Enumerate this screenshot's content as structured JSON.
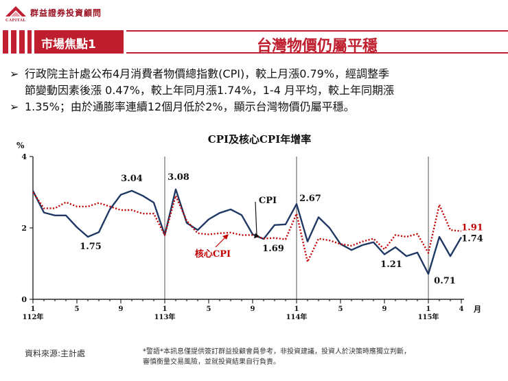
{
  "brand": {
    "name": "群益證券投資顧問",
    "caption": "CAPITAL"
  },
  "header": {
    "tag": "市場焦點1",
    "title": "台灣物價仍屬平穩"
  },
  "bullets": [
    "行政院主計處公布4月消費者物價總指數(CPI)，較上月漲0.79%，經調整季",
    "節變動因素後漲 0.47%，較上年同月漲1.74%，1-4 月平均，較上年同期漲",
    "1.35%；由於通膨率連續12個月低於2%，顯示台灣物價仍屬平穩。"
  ],
  "colors": {
    "accent": "#be1e2d",
    "cpi": "#1f3864",
    "core": "#c00000"
  },
  "chart_data": {
    "type": "line",
    "title": "CPI及核心CPI年增率",
    "ylabel": "%",
    "xlabel": "月",
    "ylim": [
      0,
      4
    ],
    "yticks": [
      0,
      2,
      4
    ],
    "xtick_labels": [
      "1",
      "5",
      "9",
      "1",
      "5",
      "9",
      "1",
      "5",
      "9",
      "1",
      "4"
    ],
    "xtick_index": [
      0,
      4,
      8,
      12,
      16,
      20,
      24,
      28,
      32,
      36,
      39
    ],
    "year_labels": [
      {
        "index": 0,
        "label": "112年"
      },
      {
        "index": 12,
        "label": "113年"
      },
      {
        "index": 24,
        "label": "114年"
      },
      {
        "index": 36,
        "label": "115年"
      }
    ],
    "x": [
      "112-01",
      "112-02",
      "112-03",
      "112-04",
      "112-05",
      "112-06",
      "112-07",
      "112-08",
      "112-09",
      "112-10",
      "112-11",
      "112-12",
      "113-01",
      "113-02",
      "113-03",
      "113-04",
      "113-05",
      "113-06",
      "113-07",
      "113-08",
      "113-09",
      "113-10",
      "113-11",
      "113-12",
      "114-01",
      "114-02",
      "114-03",
      "114-04",
      "114-05",
      "114-06",
      "114-07",
      "114-08",
      "114-09",
      "114-10",
      "114-11",
      "114-12",
      "115-01",
      "115-02",
      "115-03",
      "115-04"
    ],
    "series": [
      {
        "name": "CPI",
        "style": "solid",
        "values": [
          3.04,
          2.43,
          2.35,
          2.35,
          2.02,
          1.75,
          1.88,
          2.52,
          2.93,
          3.04,
          2.9,
          2.71,
          1.8,
          3.08,
          2.14,
          1.94,
          2.24,
          2.42,
          2.52,
          2.36,
          1.82,
          1.69,
          2.08,
          2.1,
          2.67,
          1.62,
          2.3,
          2.0,
          1.55,
          1.38,
          1.52,
          1.6,
          1.26,
          1.46,
          1.21,
          1.31,
          0.71,
          1.75,
          1.21,
          1.74
        ]
      },
      {
        "name": "核心CPI",
        "style": "dotted",
        "values": [
          3.0,
          2.55,
          2.55,
          2.72,
          2.6,
          2.6,
          2.7,
          2.6,
          2.5,
          2.5,
          2.4,
          2.4,
          1.8,
          2.9,
          2.2,
          1.85,
          1.82,
          1.85,
          1.87,
          1.8,
          1.8,
          1.7,
          1.72,
          1.68,
          2.4,
          1.05,
          1.7,
          1.65,
          1.55,
          1.5,
          1.62,
          1.7,
          1.4,
          1.8,
          1.75,
          1.83,
          1.3,
          2.65,
          1.94,
          1.91
        ]
      }
    ],
    "annotations": [
      {
        "text": "3.04",
        "series": "CPI",
        "index": 9
      },
      {
        "text": "1.75",
        "series": "CPI",
        "index": 5
      },
      {
        "text": "3.08",
        "series": "CPI",
        "index": 13
      },
      {
        "text": "1.69",
        "series": "CPI",
        "index": 21
      },
      {
        "text": "2.67",
        "series": "CPI",
        "index": 24
      },
      {
        "text": "1.21",
        "series": "CPI",
        "index": 34
      },
      {
        "text": "0.71",
        "series": "CPI",
        "index": 36
      },
      {
        "text": "1.74",
        "series": "CPI",
        "index": 39
      },
      {
        "text": "1.91",
        "series": "核心CPI",
        "index": 39
      }
    ],
    "grid": false,
    "legend": "inline labels with arrows"
  },
  "footer": {
    "source": "資料來源:主計處",
    "warning_line1": "*警語*本訊息僅提供簽訂群益投顧會員參考，非投資建議，投資人於決策時應獨立判斷，",
    "warning_line2": "審慎衡量交易風險，並就投資結果自行負責。"
  }
}
